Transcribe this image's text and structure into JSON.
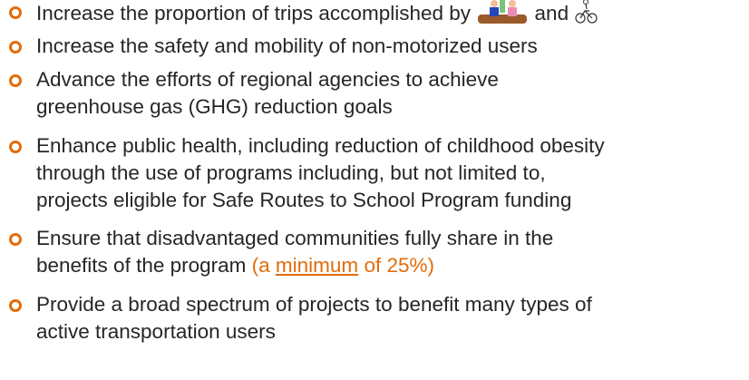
{
  "bullets": [
    [
      "Increase the proportion of trips accomplished by",
      "and"
    ],
    [
      "Increase the safety and mobility of non-motorized users"
    ],
    [
      "Advance the efforts of regional agencies to achieve",
      "greenhouse gas (GHG) reduction goals"
    ],
    [
      "Enhance public health, including reduction of childhood obesity",
      "through the use of programs including, but not limited to,",
      "projects eligible for Safe Routes to School Program funding"
    ],
    [
      "Ensure that disadvantaged communities fully share in the",
      "benefits of the program",
      "(a ",
      "minimum",
      " of 25%)"
    ],
    [
      "Provide a broad spectrum of projects to benefit many types of",
      "active transportation users"
    ]
  ]
}
